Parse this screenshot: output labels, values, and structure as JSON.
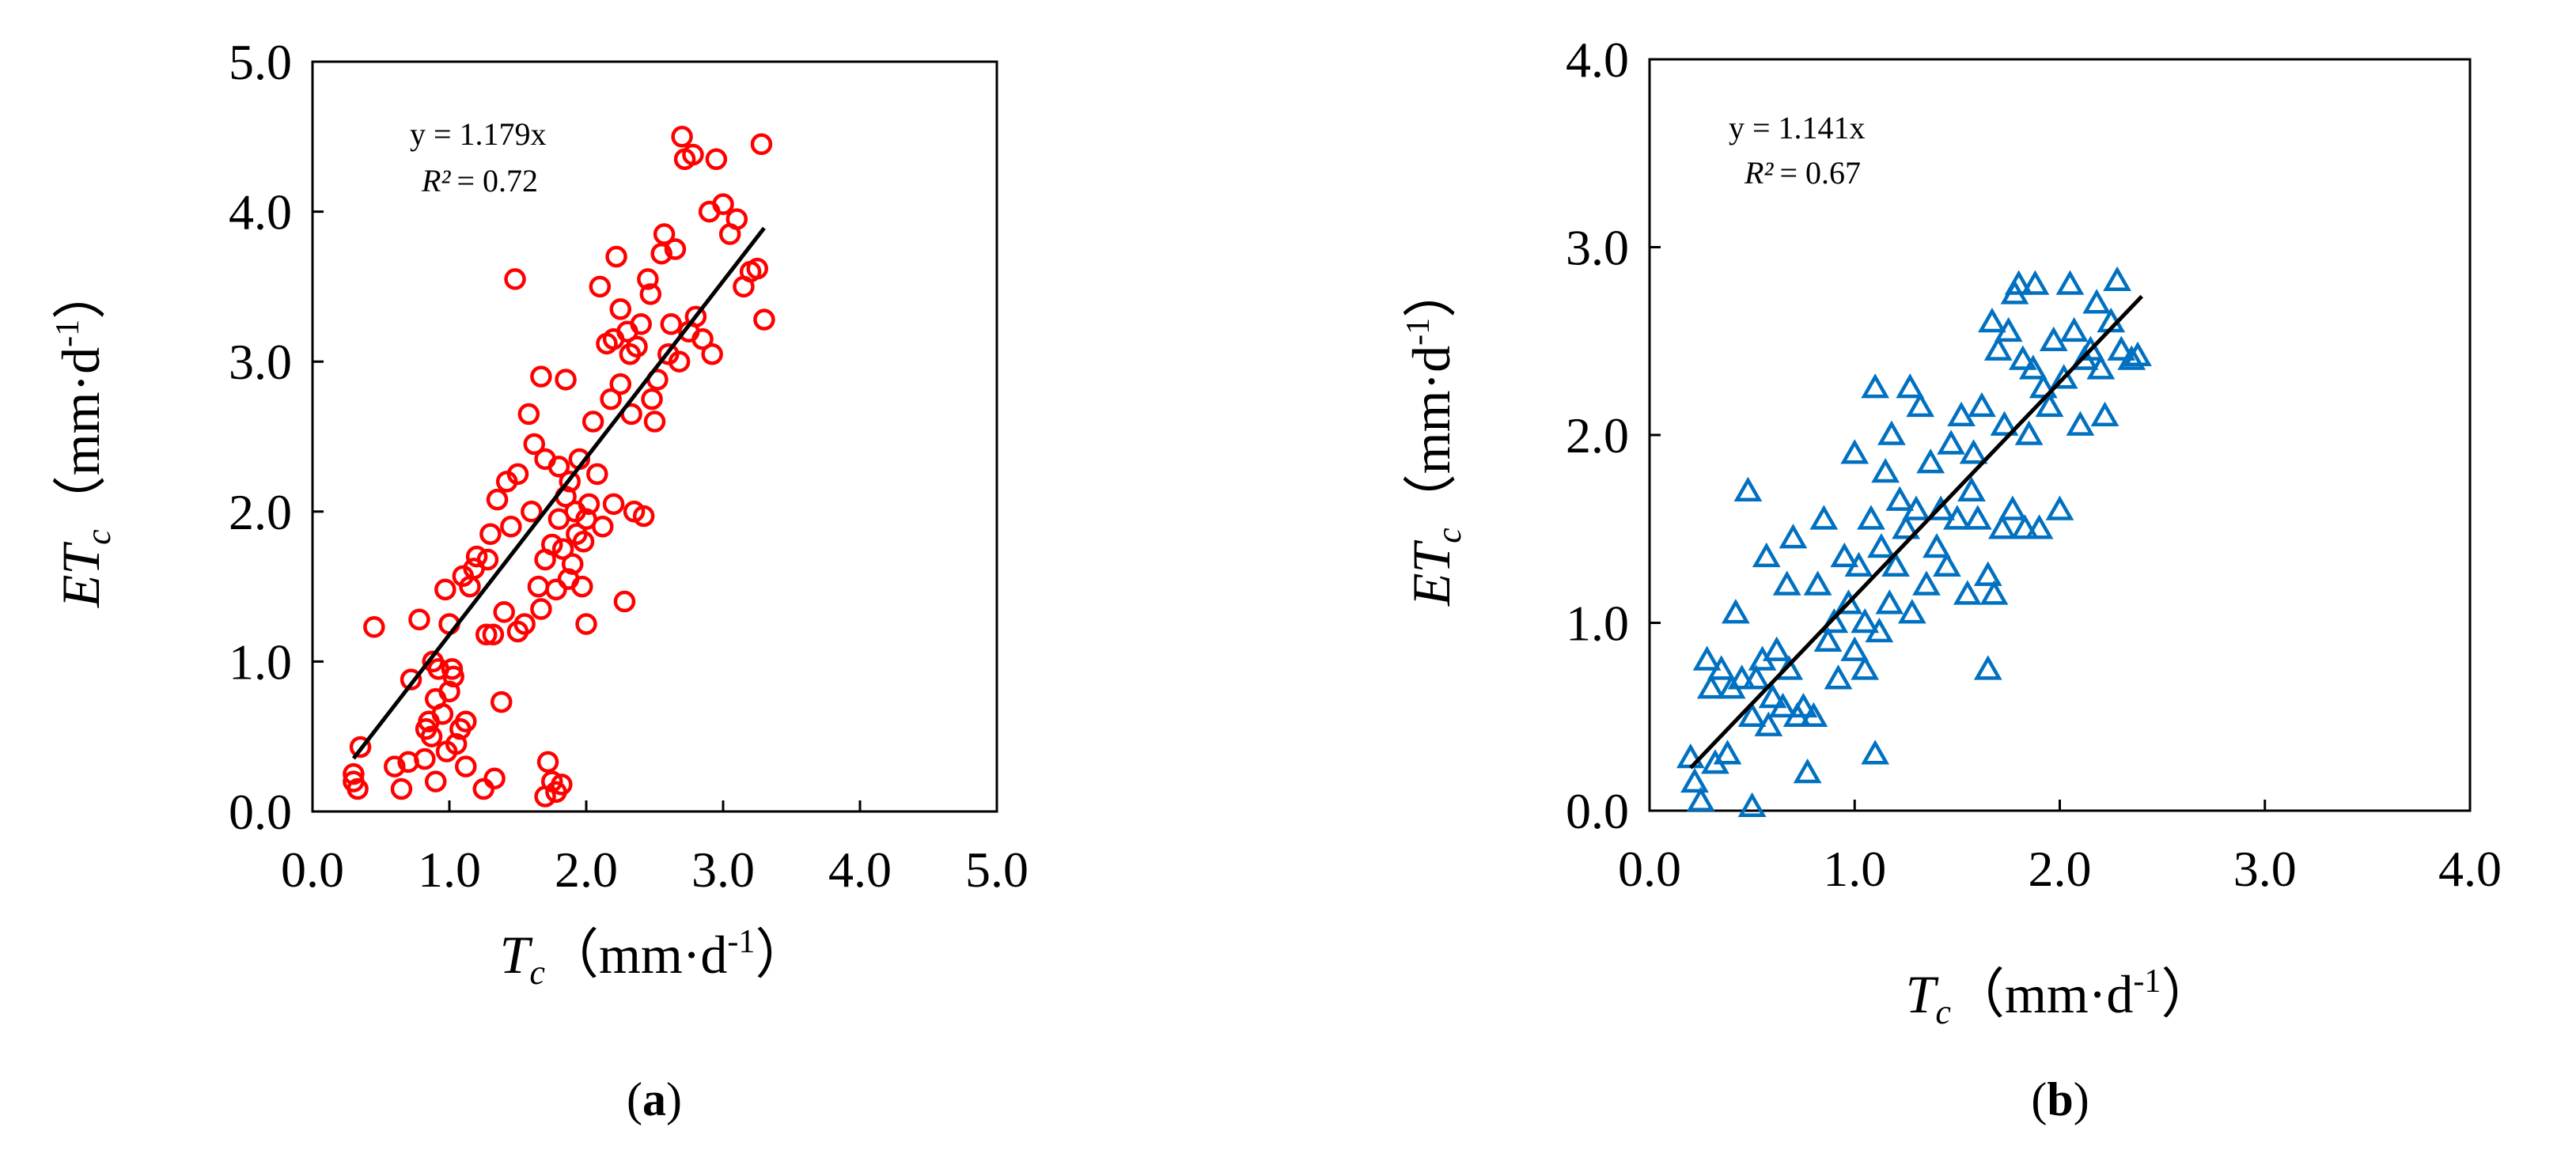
{
  "figure": {
    "panels": [
      "a",
      "b"
    ]
  },
  "chart_data": [
    {
      "type": "scatter",
      "panel_label": "a",
      "xlabel": {
        "var": "T",
        "sub": "c",
        "unit": "（mm·d",
        "sup": "-1",
        "close": "）"
      },
      "ylabel": {
        "var": "ET",
        "sub": "c",
        "unit": "（mm·d",
        "sup": "-1",
        "close": "）"
      },
      "xlim": [
        0,
        5
      ],
      "ylim": [
        0,
        5
      ],
      "xticks": [
        "0.0",
        "1.0",
        "2.0",
        "3.0",
        "4.0",
        "5.0"
      ],
      "yticks": [
        "0.0",
        "1.0",
        "2.0",
        "3.0",
        "4.0",
        "5.0"
      ],
      "equation": "y = 1.179x",
      "r2_label": "R²",
      "r2_value": "= 0.72",
      "marker": "circle",
      "color": "#ff0000",
      "fit": {
        "slope": 1.179,
        "x_range": [
          0.3,
          3.3
        ]
      },
      "points": [
        [
          0.3,
          0.25
        ],
        [
          0.3,
          0.2
        ],
        [
          0.33,
          0.15
        ],
        [
          0.35,
          0.43
        ],
        [
          0.45,
          1.23
        ],
        [
          0.6,
          0.3
        ],
        [
          0.65,
          0.15
        ],
        [
          0.7,
          0.33
        ],
        [
          0.72,
          0.88
        ],
        [
          0.78,
          1.28
        ],
        [
          0.82,
          0.35
        ],
        [
          0.83,
          0.55
        ],
        [
          0.85,
          0.6
        ],
        [
          0.87,
          0.5
        ],
        [
          0.88,
          1.0
        ],
        [
          0.9,
          0.2
        ],
        [
          0.9,
          0.75
        ],
        [
          0.92,
          0.95
        ],
        [
          0.95,
          0.65
        ],
        [
          0.97,
          1.48
        ],
        [
          0.98,
          0.4
        ],
        [
          1.0,
          0.8
        ],
        [
          1.0,
          1.25
        ],
        [
          1.02,
          0.95
        ],
        [
          1.03,
          0.9
        ],
        [
          1.05,
          0.45
        ],
        [
          1.08,
          0.55
        ],
        [
          1.1,
          1.57
        ],
        [
          1.12,
          0.6
        ],
        [
          1.12,
          0.3
        ],
        [
          1.15,
          1.5
        ],
        [
          1.18,
          1.62
        ],
        [
          1.2,
          1.7
        ],
        [
          1.25,
          0.15
        ],
        [
          1.27,
          1.18
        ],
        [
          1.28,
          1.68
        ],
        [
          1.3,
          1.85
        ],
        [
          1.32,
          1.18
        ],
        [
          1.33,
          0.22
        ],
        [
          1.35,
          2.08
        ],
        [
          1.38,
          0.73
        ],
        [
          1.4,
          1.33
        ],
        [
          1.42,
          2.2
        ],
        [
          1.45,
          1.9
        ],
        [
          1.48,
          3.55
        ],
        [
          1.5,
          2.25
        ],
        [
          1.5,
          1.2
        ],
        [
          1.55,
          1.25
        ],
        [
          1.58,
          2.65
        ],
        [
          1.6,
          2.0
        ],
        [
          1.62,
          2.45
        ],
        [
          1.65,
          1.5
        ],
        [
          1.67,
          1.35
        ],
        [
          1.67,
          2.9
        ],
        [
          1.7,
          2.35
        ],
        [
          1.7,
          1.68
        ],
        [
          1.7,
          0.1
        ],
        [
          1.72,
          0.33
        ],
        [
          1.75,
          0.2
        ],
        [
          1.75,
          1.78
        ],
        [
          1.78,
          0.13
        ],
        [
          1.78,
          1.48
        ],
        [
          1.8,
          2.3
        ],
        [
          1.8,
          1.95
        ],
        [
          1.82,
          0.18
        ],
        [
          1.83,
          1.75
        ],
        [
          1.85,
          2.88
        ],
        [
          1.85,
          2.1
        ],
        [
          1.87,
          1.55
        ],
        [
          1.88,
          2.2
        ],
        [
          1.9,
          1.65
        ],
        [
          1.92,
          2.0
        ],
        [
          1.93,
          1.85
        ],
        [
          1.95,
          2.35
        ],
        [
          1.97,
          1.5
        ],
        [
          1.98,
          1.8
        ],
        [
          2.0,
          1.95
        ],
        [
          2.0,
          1.25
        ],
        [
          2.02,
          2.05
        ],
        [
          2.05,
          2.6
        ],
        [
          2.08,
          2.25
        ],
        [
          2.1,
          3.5
        ],
        [
          2.12,
          1.9
        ],
        [
          2.15,
          3.12
        ],
        [
          2.18,
          2.75
        ],
        [
          2.2,
          2.05
        ],
        [
          2.2,
          3.15
        ],
        [
          2.22,
          3.7
        ],
        [
          2.25,
          2.85
        ],
        [
          2.25,
          3.35
        ],
        [
          2.28,
          1.4
        ],
        [
          2.3,
          3.2
        ],
        [
          2.32,
          3.05
        ],
        [
          2.33,
          2.65
        ],
        [
          2.35,
          2.0
        ],
        [
          2.37,
          3.1
        ],
        [
          2.4,
          3.25
        ],
        [
          2.42,
          1.97
        ],
        [
          2.45,
          3.55
        ],
        [
          2.47,
          3.45
        ],
        [
          2.48,
          2.75
        ],
        [
          2.5,
          2.6
        ],
        [
          2.52,
          2.88
        ],
        [
          2.55,
          3.72
        ],
        [
          2.57,
          3.85
        ],
        [
          2.6,
          3.05
        ],
        [
          2.62,
          3.25
        ],
        [
          2.65,
          3.75
        ],
        [
          2.68,
          3.0
        ],
        [
          2.7,
          4.5
        ],
        [
          2.72,
          4.35
        ],
        [
          2.75,
          3.2
        ],
        [
          2.78,
          4.38
        ],
        [
          2.8,
          3.3
        ],
        [
          2.85,
          3.15
        ],
        [
          2.9,
          4.0
        ],
        [
          2.92,
          3.05
        ],
        [
          2.95,
          4.35
        ],
        [
          3.0,
          4.05
        ],
        [
          3.05,
          3.85
        ],
        [
          3.1,
          3.95
        ],
        [
          3.15,
          3.5
        ],
        [
          3.2,
          3.6
        ],
        [
          3.25,
          3.62
        ],
        [
          3.28,
          4.45
        ],
        [
          3.3,
          3.28
        ]
      ]
    },
    {
      "type": "scatter",
      "panel_label": "b",
      "xlabel": {
        "var": "T",
        "sub": "c",
        "unit": "（mm·d",
        "sup": "-1",
        "close": "）"
      },
      "ylabel": {
        "var": "ET",
        "sub": "c",
        "unit": "（mm·d",
        "sup": "-1",
        "close": "）"
      },
      "xlim": [
        0,
        4
      ],
      "ylim": [
        0,
        4
      ],
      "xticks": [
        "0.0",
        "1.0",
        "2.0",
        "3.0",
        "4.0"
      ],
      "yticks": [
        "0.0",
        "1.0",
        "2.0",
        "3.0",
        "4.0"
      ],
      "equation": "y = 1.141x",
      "r2_label": "R²",
      "r2_value": "= 0.67",
      "marker": "triangle",
      "color": "#0070c0",
      "fit": {
        "slope": 1.141,
        "x_range": [
          0.2,
          2.4
        ]
      },
      "points": [
        [
          0.2,
          0.28
        ],
        [
          0.22,
          0.15
        ],
        [
          0.25,
          0.05
        ],
        [
          0.28,
          0.8
        ],
        [
          0.3,
          0.65
        ],
        [
          0.32,
          0.25
        ],
        [
          0.35,
          0.75
        ],
        [
          0.38,
          0.3
        ],
        [
          0.4,
          0.65
        ],
        [
          0.42,
          1.05
        ],
        [
          0.45,
          0.7
        ],
        [
          0.48,
          1.7
        ],
        [
          0.5,
          0.02
        ],
        [
          0.5,
          0.5
        ],
        [
          0.52,
          0.7
        ],
        [
          0.55,
          0.8
        ],
        [
          0.57,
          1.35
        ],
        [
          0.58,
          0.45
        ],
        [
          0.6,
          0.6
        ],
        [
          0.62,
          0.85
        ],
        [
          0.65,
          0.55
        ],
        [
          0.67,
          1.2
        ],
        [
          0.68,
          0.75
        ],
        [
          0.7,
          1.45
        ],
        [
          0.72,
          0.5
        ],
        [
          0.75,
          0.55
        ],
        [
          0.77,
          0.2
        ],
        [
          0.8,
          0.5
        ],
        [
          0.82,
          1.2
        ],
        [
          0.85,
          1.55
        ],
        [
          0.87,
          0.9
        ],
        [
          0.9,
          1.0
        ],
        [
          0.92,
          0.7
        ],
        [
          0.95,
          1.35
        ],
        [
          0.97,
          1.1
        ],
        [
          1.0,
          0.85
        ],
        [
          1.0,
          1.9
        ],
        [
          1.02,
          1.3
        ],
        [
          1.05,
          1.0
        ],
        [
          1.05,
          0.75
        ],
        [
          1.08,
          1.55
        ],
        [
          1.1,
          0.3
        ],
        [
          1.1,
          2.25
        ],
        [
          1.12,
          0.95
        ],
        [
          1.13,
          1.4
        ],
        [
          1.15,
          1.8
        ],
        [
          1.17,
          1.1
        ],
        [
          1.18,
          2.0
        ],
        [
          1.2,
          1.3
        ],
        [
          1.22,
          1.65
        ],
        [
          1.25,
          1.5
        ],
        [
          1.27,
          2.25
        ],
        [
          1.28,
          1.05
        ],
        [
          1.3,
          1.6
        ],
        [
          1.32,
          2.15
        ],
        [
          1.35,
          1.2
        ],
        [
          1.37,
          1.85
        ],
        [
          1.4,
          1.4
        ],
        [
          1.42,
          1.6
        ],
        [
          1.45,
          1.3
        ],
        [
          1.47,
          1.95
        ],
        [
          1.5,
          1.55
        ],
        [
          1.52,
          2.1
        ],
        [
          1.55,
          1.15
        ],
        [
          1.57,
          1.7
        ],
        [
          1.58,
          1.9
        ],
        [
          1.6,
          1.55
        ],
        [
          1.62,
          2.15
        ],
        [
          1.65,
          1.25
        ],
        [
          1.65,
          0.75
        ],
        [
          1.67,
          2.6
        ],
        [
          1.68,
          1.15
        ],
        [
          1.7,
          2.45
        ],
        [
          1.72,
          1.5
        ],
        [
          1.73,
          2.05
        ],
        [
          1.75,
          2.55
        ],
        [
          1.77,
          1.6
        ],
        [
          1.78,
          2.75
        ],
        [
          1.8,
          2.8
        ],
        [
          1.82,
          2.4
        ],
        [
          1.83,
          1.5
        ],
        [
          1.85,
          2.0
        ],
        [
          1.87,
          2.35
        ],
        [
          1.88,
          2.8
        ],
        [
          1.9,
          1.5
        ],
        [
          1.92,
          2.25
        ],
        [
          1.95,
          2.15
        ],
        [
          1.97,
          2.5
        ],
        [
          2.0,
          1.6
        ],
        [
          2.02,
          2.3
        ],
        [
          2.05,
          2.8
        ],
        [
          2.07,
          2.55
        ],
        [
          2.1,
          2.05
        ],
        [
          2.12,
          2.4
        ],
        [
          2.15,
          2.45
        ],
        [
          2.18,
          2.7
        ],
        [
          2.2,
          2.35
        ],
        [
          2.22,
          2.1
        ],
        [
          2.25,
          2.6
        ],
        [
          2.28,
          2.82
        ],
        [
          2.3,
          2.45
        ],
        [
          2.35,
          2.4
        ],
        [
          2.38,
          2.42
        ]
      ]
    }
  ]
}
